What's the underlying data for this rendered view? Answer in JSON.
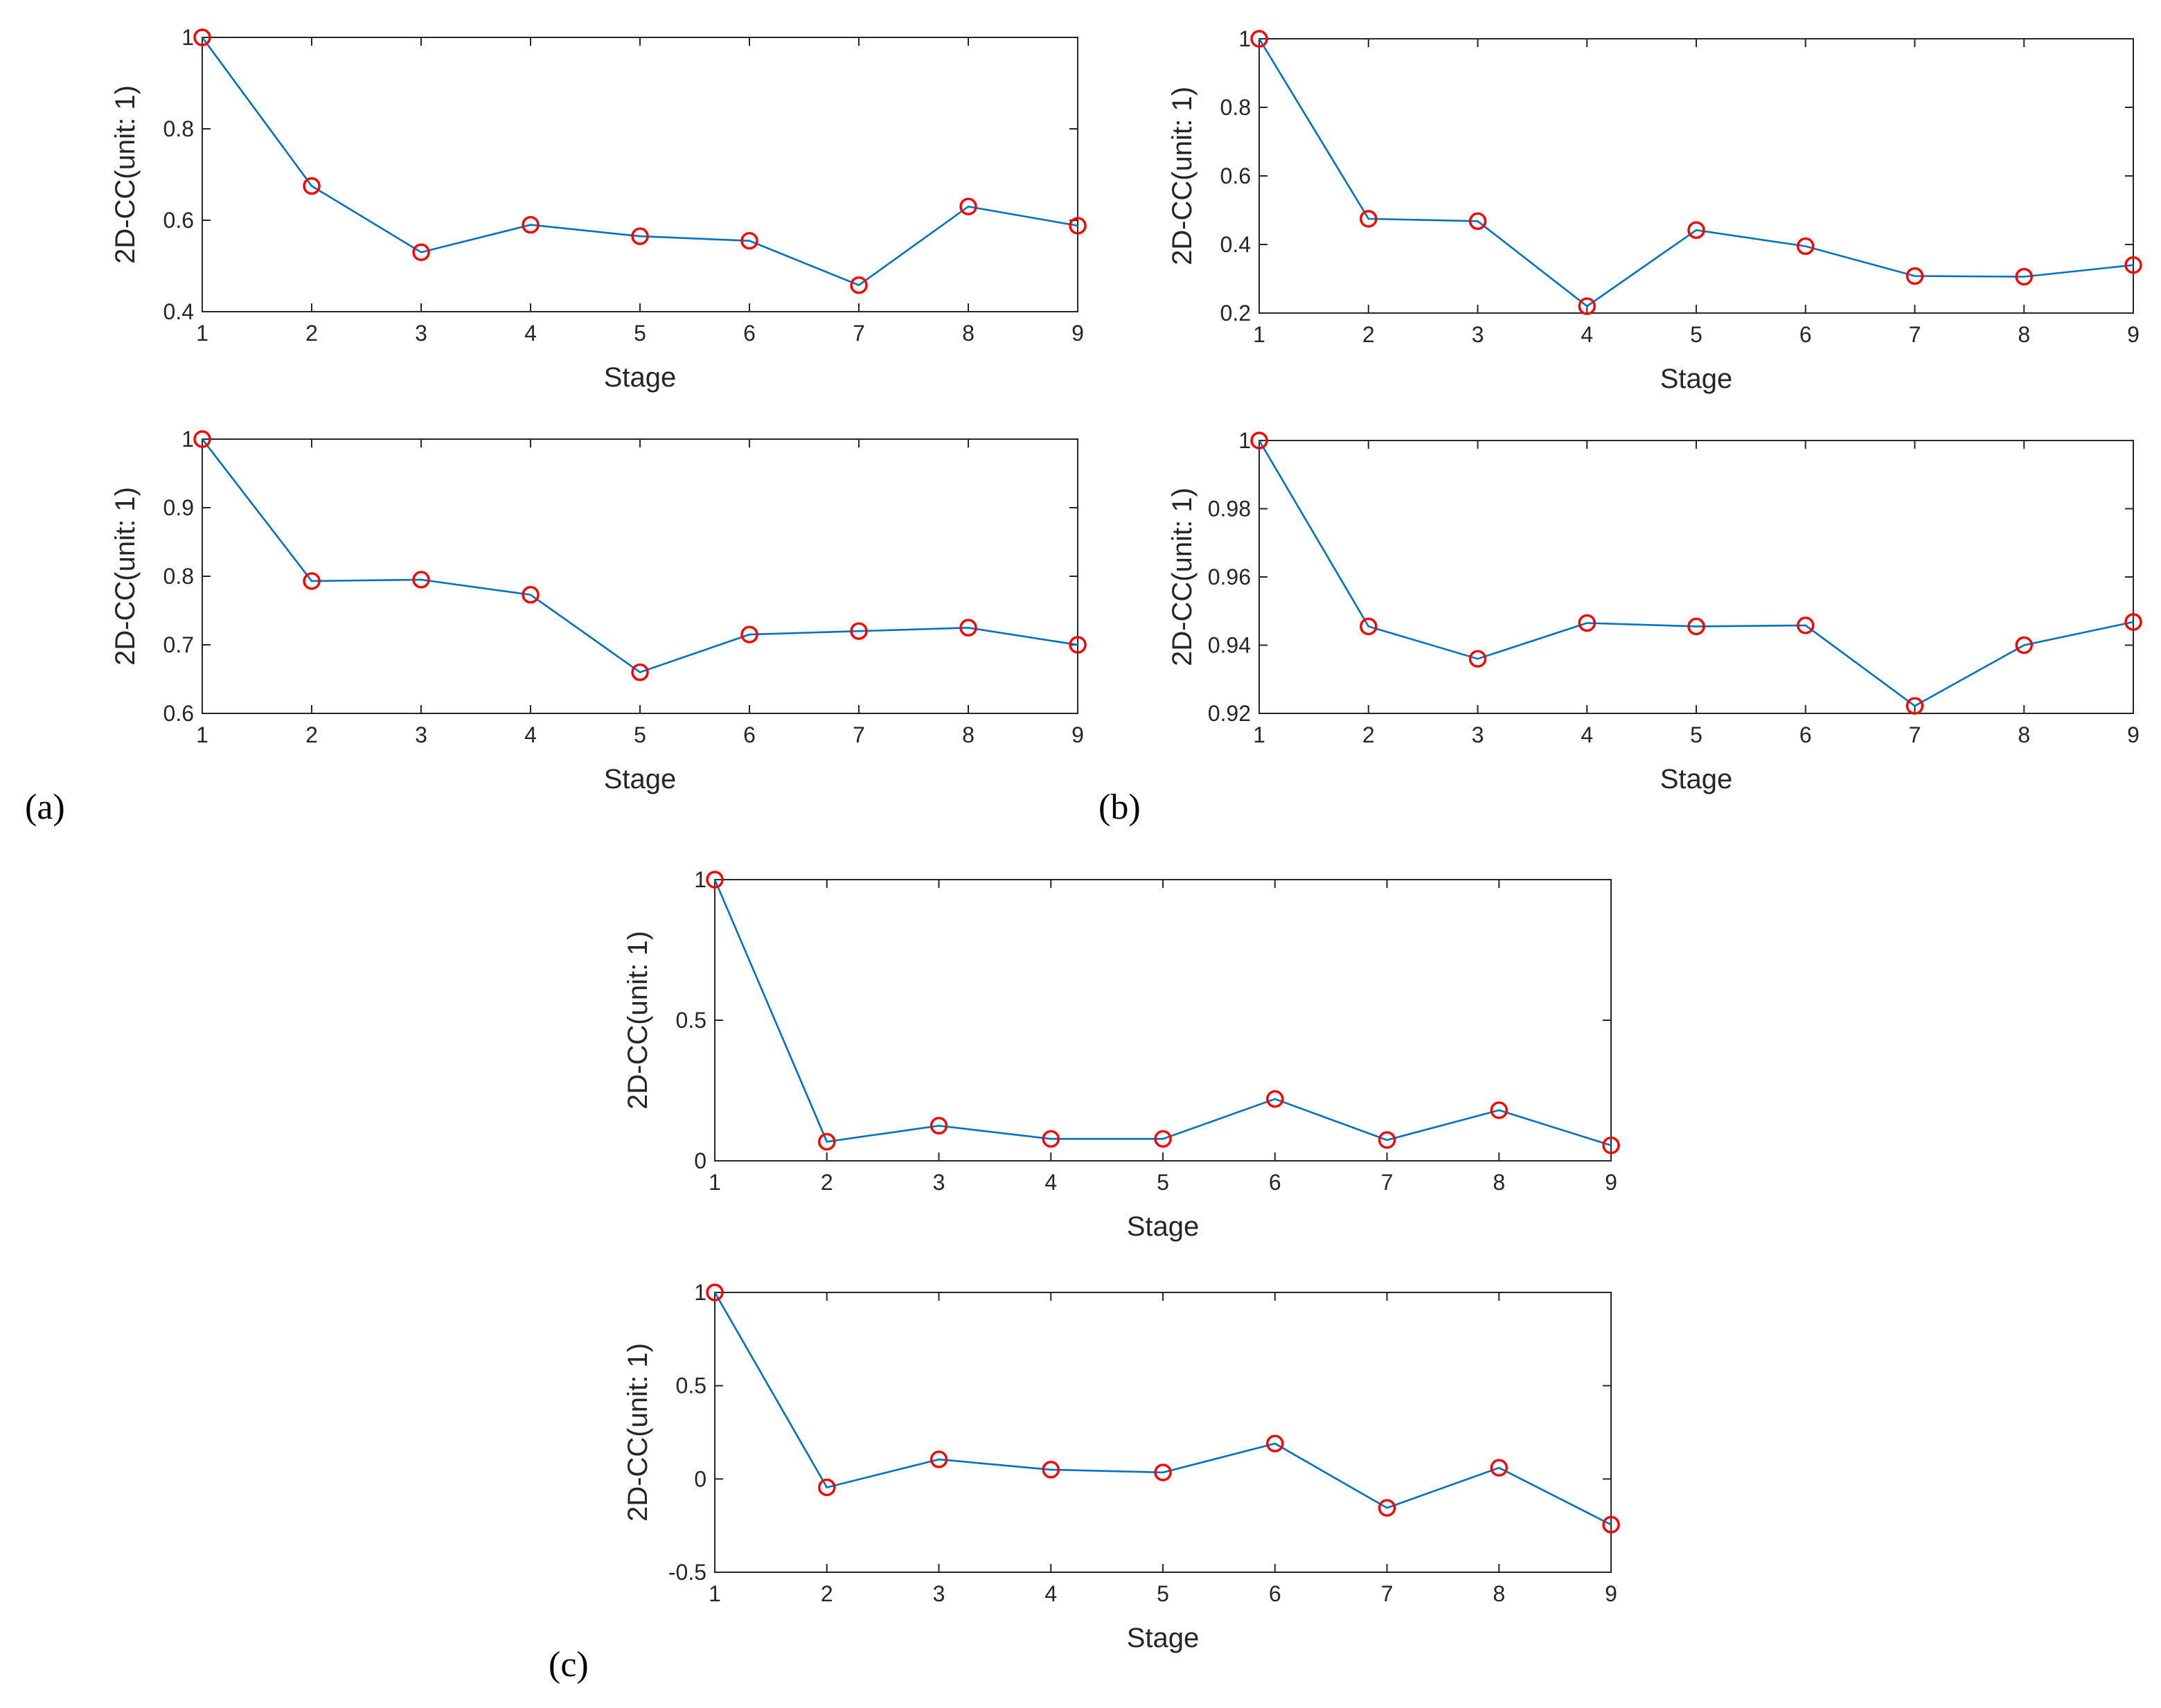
{
  "colors": {
    "line": "#0072BD",
    "marker": "#FF0000",
    "axis": "#262626"
  },
  "panel_labels": [
    "(a)",
    "(b)",
    "(c)"
  ],
  "chart_data": [
    {
      "type": "line",
      "group": "(a)",
      "position": "top",
      "xlabel": "Stage",
      "ylabel": "2D-CC(unit: 1)",
      "x": [
        1,
        2,
        3,
        4,
        5,
        6,
        7,
        8,
        9
      ],
      "values": [
        1,
        0.675,
        0.53,
        0.59,
        0.565,
        0.555,
        0.458,
        0.63,
        0.588
      ],
      "xlim": [
        1,
        9
      ],
      "ylim": [
        0.4,
        1
      ],
      "xticks": [
        "1",
        "2",
        "3",
        "4",
        "5",
        "6",
        "7",
        "8",
        "9"
      ],
      "yticks": [
        0.4,
        0.6,
        0.8,
        1
      ],
      "ytick_labels": [
        "0.4",
        "0.6",
        "0.8",
        "1"
      ]
    },
    {
      "type": "line",
      "group": "(a)",
      "position": "bottom",
      "xlabel": "Stage",
      "ylabel": "2D-CC(unit: 1)",
      "x": [
        1,
        2,
        3,
        4,
        5,
        6,
        7,
        8,
        9
      ],
      "values": [
        1,
        0.793,
        0.795,
        0.773,
        0.66,
        0.715,
        0.72,
        0.725,
        0.7
      ],
      "xlim": [
        1,
        9
      ],
      "ylim": [
        0.6,
        1
      ],
      "xticks": [
        "1",
        "2",
        "3",
        "4",
        "5",
        "6",
        "7",
        "8",
        "9"
      ],
      "yticks": [
        0.6,
        0.7,
        0.8,
        0.9,
        1
      ],
      "ytick_labels": [
        "0.6",
        "0.7",
        "0.8",
        "0.9",
        "1"
      ]
    },
    {
      "type": "line",
      "group": "(b)",
      "position": "top",
      "xlabel": "Stage",
      "ylabel": "2D-CC(unit: 1)",
      "x": [
        1,
        2,
        3,
        4,
        5,
        6,
        7,
        8,
        9
      ],
      "values": [
        1,
        0.475,
        0.468,
        0.22,
        0.442,
        0.395,
        0.308,
        0.306,
        0.34
      ],
      "xlim": [
        1,
        9
      ],
      "ylim": [
        0.2,
        1
      ],
      "xticks": [
        "1",
        "2",
        "3",
        "4",
        "5",
        "6",
        "7",
        "8",
        "9"
      ],
      "yticks": [
        0.2,
        0.4,
        0.6,
        0.8,
        1
      ],
      "ytick_labels": [
        "0.2",
        "0.4",
        "0.6",
        "0.8",
        "1"
      ]
    },
    {
      "type": "line",
      "group": "(b)",
      "position": "bottom",
      "xlabel": "Stage",
      "ylabel": "2D-CC(unit: 1)",
      "x": [
        1,
        2,
        3,
        4,
        5,
        6,
        7,
        8,
        9
      ],
      "values": [
        1,
        0.9455,
        0.936,
        0.9465,
        0.9455,
        0.9458,
        0.9222,
        0.94,
        0.9468
      ],
      "xlim": [
        1,
        9
      ],
      "ylim": [
        0.92,
        1
      ],
      "xticks": [
        "1",
        "2",
        "3",
        "4",
        "5",
        "6",
        "7",
        "8",
        "9"
      ],
      "yticks": [
        0.92,
        0.94,
        0.96,
        0.98,
        1
      ],
      "ytick_labels": [
        "0.92",
        "0.94",
        "0.96",
        "0.98",
        "1"
      ]
    },
    {
      "type": "line",
      "group": "(c)",
      "position": "top",
      "xlabel": "Stage",
      "ylabel": "2D-CC(unit: 1)",
      "x": [
        1,
        2,
        3,
        4,
        5,
        6,
        7,
        8,
        9
      ],
      "values": [
        1,
        0.068,
        0.125,
        0.078,
        0.078,
        0.22,
        0.074,
        0.18,
        0.055
      ],
      "xlim": [
        1,
        9
      ],
      "ylim": [
        0,
        1
      ],
      "xticks": [
        "1",
        "2",
        "3",
        "4",
        "5",
        "6",
        "7",
        "8",
        "9"
      ],
      "yticks": [
        0,
        0.5,
        1
      ],
      "ytick_labels": [
        "0",
        "0.5",
        "1"
      ]
    },
    {
      "type": "line",
      "group": "(c)",
      "position": "bottom",
      "xlabel": "Stage",
      "ylabel": "2D-CC(unit: 1)",
      "x": [
        1,
        2,
        3,
        4,
        5,
        6,
        7,
        8,
        9
      ],
      "values": [
        1,
        -0.045,
        0.105,
        0.05,
        0.035,
        0.19,
        -0.155,
        0.06,
        -0.245
      ],
      "xlim": [
        1,
        9
      ],
      "ylim": [
        -0.5,
        1
      ],
      "xticks": [
        "1",
        "2",
        "3",
        "4",
        "5",
        "6",
        "7",
        "8",
        "9"
      ],
      "yticks": [
        -0.5,
        0,
        0.5,
        1
      ],
      "ytick_labels": [
        "-0.5",
        "0",
        "0.5",
        "1"
      ]
    }
  ]
}
